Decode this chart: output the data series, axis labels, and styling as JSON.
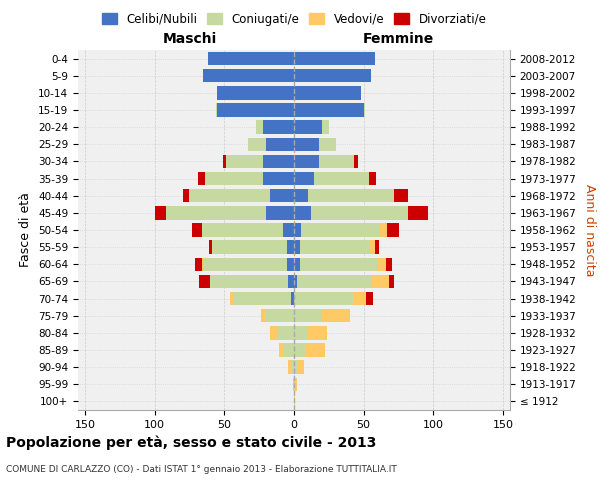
{
  "age_groups": [
    "100+",
    "95-99",
    "90-94",
    "85-89",
    "80-84",
    "75-79",
    "70-74",
    "65-69",
    "60-64",
    "55-59",
    "50-54",
    "45-49",
    "40-44",
    "35-39",
    "30-34",
    "25-29",
    "20-24",
    "15-19",
    "10-14",
    "5-9",
    "0-4"
  ],
  "birth_years": [
    "≤ 1912",
    "1913-1917",
    "1918-1922",
    "1923-1927",
    "1928-1932",
    "1933-1937",
    "1938-1942",
    "1943-1947",
    "1948-1952",
    "1953-1957",
    "1958-1962",
    "1963-1967",
    "1968-1972",
    "1973-1977",
    "1978-1982",
    "1983-1987",
    "1988-1992",
    "1993-1997",
    "1998-2002",
    "2003-2007",
    "2008-2012"
  ],
  "male_celibi": [
    0,
    0,
    0,
    0,
    0,
    0,
    2,
    4,
    5,
    5,
    8,
    20,
    17,
    22,
    22,
    20,
    22,
    55,
    55,
    65,
    62
  ],
  "male_coniugati": [
    0,
    1,
    2,
    7,
    12,
    20,
    42,
    56,
    60,
    54,
    58,
    72,
    58,
    42,
    27,
    13,
    5,
    1,
    0,
    0,
    0
  ],
  "male_vedovi": [
    0,
    0,
    2,
    4,
    5,
    4,
    2,
    0,
    1,
    0,
    0,
    0,
    0,
    0,
    0,
    0,
    0,
    0,
    0,
    0,
    0
  ],
  "male_divorziati": [
    0,
    0,
    0,
    0,
    0,
    0,
    0,
    8,
    5,
    2,
    7,
    8,
    5,
    5,
    2,
    0,
    0,
    0,
    0,
    0,
    0
  ],
  "fem_nubili": [
    0,
    0,
    0,
    0,
    0,
    0,
    0,
    2,
    4,
    4,
    5,
    12,
    10,
    14,
    18,
    18,
    20,
    50,
    48,
    55,
    58
  ],
  "fem_coniugate": [
    0,
    0,
    2,
    8,
    10,
    20,
    42,
    54,
    56,
    50,
    56,
    70,
    62,
    40,
    25,
    12,
    5,
    1,
    0,
    0,
    0
  ],
  "fem_vedove": [
    1,
    2,
    5,
    14,
    14,
    20,
    10,
    12,
    6,
    4,
    6,
    0,
    0,
    0,
    0,
    0,
    0,
    0,
    0,
    0,
    0
  ],
  "fem_divorziate": [
    0,
    0,
    0,
    0,
    0,
    0,
    5,
    4,
    4,
    3,
    8,
    14,
    10,
    5,
    3,
    0,
    0,
    0,
    0,
    0,
    0
  ],
  "color_celibi": "#4472c4",
  "color_coniugati": "#c5d9a0",
  "color_vedovi": "#ffc966",
  "color_divorziati": "#cc0000",
  "xlim": 155,
  "title": "Popolazione per età, sesso e stato civile - 2013",
  "subtitle": "COMUNE DI CARLAZZO (CO) - Dati ISTAT 1° gennaio 2013 - Elaborazione TUTTITALIA.IT",
  "ylabel_left": "Fasce di età",
  "ylabel_right": "Anni di nascita",
  "xlabel_left": "Maschi",
  "xlabel_right": "Femmine",
  "bg_color": "#f0f0f0",
  "grid_color": "#cccccc"
}
